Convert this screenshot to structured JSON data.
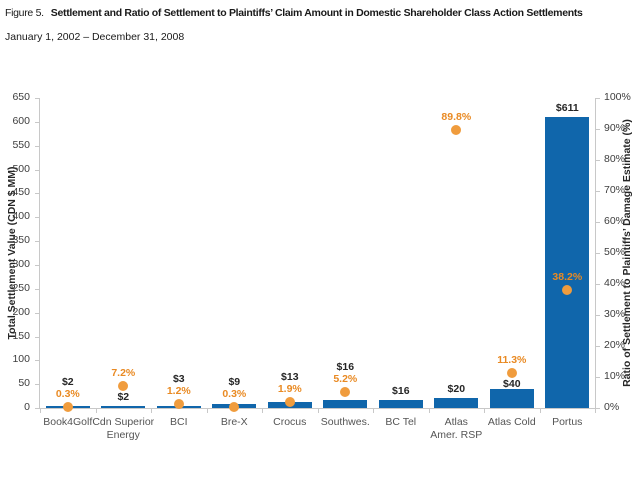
{
  "figure": {
    "label": "Figure 5."
  },
  "chart_data": {
    "type": "bar",
    "title": "Settlement and Ratio of Settlement to Plaintiffs’ Claim Amount in Domestic Shareholder Class Action Settlements",
    "subtitle": "January 1, 2002 – December 31, 2008",
    "ylabel_left": "Total Settlement Value (CDN $ MM)",
    "ylabel_right": "Ratio of Settlement to Plaintiffs’ Damage Estimate (%)",
    "ylim_left": [
      0,
      650
    ],
    "ylim_right": [
      0,
      100
    ],
    "y_left_ticks": [
      0,
      50,
      100,
      150,
      200,
      250,
      300,
      350,
      400,
      450,
      500,
      550,
      600,
      650
    ],
    "y_right_ticks": [
      "0%",
      "10%",
      "20%",
      "30%",
      "40%",
      "50%",
      "60%",
      "70%",
      "80%",
      "90%",
      "100%"
    ],
    "grid": false,
    "legend": "none",
    "categories": [
      "Book4Golf",
      "Cdn Superior\nEnergy",
      "BCI",
      "Bre-X",
      "Crocus",
      "Southwes.",
      "BC Tel",
      "Atlas\nAmer. RSP",
      "Atlas Cold",
      "Portus"
    ],
    "series": [
      {
        "name": "Total Settlement Value (CDN $ MM)",
        "type": "bar",
        "axis": "left",
        "values": [
          2,
          2,
          3,
          9,
          13,
          16,
          16,
          20,
          40,
          611
        ],
        "labels": [
          "$2",
          "$2",
          "$3",
          "$9",
          "$13",
          "$16",
          "$16",
          "$20",
          "$40",
          "$611"
        ]
      },
      {
        "name": "Ratio of Settlement to Plaintiffs’ Damage Estimate (%)",
        "type": "point",
        "axis": "right",
        "values": [
          0.3,
          7.2,
          1.2,
          0.3,
          1.9,
          5.2,
          null,
          89.8,
          11.3,
          38.2
        ],
        "labels": [
          "0.3%",
          "7.2%",
          "1.2%",
          "0.3%",
          "1.9%",
          "5.2%",
          "",
          "89.8%",
          "11.3%",
          "38.2%"
        ]
      }
    ],
    "colors": {
      "bar": "#1066ab",
      "dot": "#f09c3d",
      "bar_label": "#262626",
      "dot_label": "#e98a23",
      "axis_line": "#c8c8c8",
      "tick_label": "#3d3d3d",
      "category_label": "#555555"
    }
  }
}
